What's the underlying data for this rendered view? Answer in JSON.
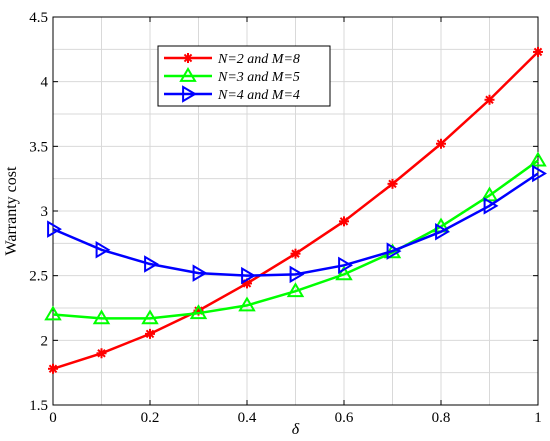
{
  "chart_data": {
    "type": "line",
    "xlabel": "δ",
    "ylabel": "Warranty cost",
    "xlim": [
      0,
      1
    ],
    "ylim": [
      1.5,
      4.5
    ],
    "grid": true,
    "legend_position": "top-left",
    "x": [
      0,
      0.1,
      0.2,
      0.3,
      0.4,
      0.5,
      0.6,
      0.7,
      0.8,
      0.9,
      1.0
    ],
    "x_ticks": [
      0,
      0.2,
      0.4,
      0.6,
      0.8,
      1
    ],
    "x_tick_labels": [
      "0",
      "0.2",
      "0.4",
      "0.6",
      "0.8",
      "1"
    ],
    "y_ticks": [
      1.5,
      2,
      2.5,
      3,
      3.5,
      4,
      4.5
    ],
    "y_tick_labels": [
      "1.5",
      "2",
      "2.5",
      "3",
      "3.5",
      "4",
      "4.5"
    ],
    "series": [
      {
        "name": "N=2  and  M=8",
        "color": "#ff0000",
        "marker": "asterisk",
        "values": [
          1.78,
          1.9,
          2.05,
          2.23,
          2.44,
          2.67,
          2.92,
          3.21,
          3.52,
          3.86,
          4.23
        ]
      },
      {
        "name": "N=3  and  M=5",
        "color": "#00ff00",
        "marker": "triangle-up",
        "values": [
          2.2,
          2.17,
          2.17,
          2.21,
          2.27,
          2.38,
          2.51,
          2.68,
          2.88,
          3.12,
          3.39
        ]
      },
      {
        "name": "N=4  and  M=4",
        "color": "#0000ff",
        "marker": "triangle-right",
        "values": [
          2.86,
          2.7,
          2.59,
          2.52,
          2.5,
          2.51,
          2.58,
          2.69,
          2.84,
          3.04,
          3.29
        ]
      }
    ]
  }
}
